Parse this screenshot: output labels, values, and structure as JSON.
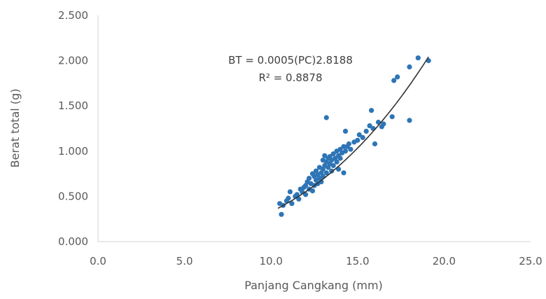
{
  "chart_data": {
    "type": "scatter",
    "xlabel": "Panjang Cangkang (mm)",
    "ylabel": "Berat total (g)",
    "xlim": [
      0,
      25
    ],
    "ylim": [
      0,
      2.5
    ],
    "x_ticks": [
      "0.0",
      "5.0",
      "10.0",
      "15.0",
      "20.0",
      "25.0"
    ],
    "y_ticks": [
      "0.000",
      "0.500",
      "1.000",
      "1.500",
      "2.000",
      "2.500"
    ],
    "grid": false,
    "legend": "none",
    "point_color": "#2E75B6",
    "trendline": {
      "type": "power",
      "coefficient": 0.0005,
      "exponent": 2.8188,
      "x_range": [
        10.4,
        19.1
      ],
      "color": "#333333",
      "equation_label": "BT = 0.0005(PC)2.8188",
      "r2_label": "R² = 0.8878"
    },
    "points": [
      [
        10.5,
        0.42
      ],
      [
        10.6,
        0.3
      ],
      [
        10.7,
        0.4
      ],
      [
        10.9,
        0.45
      ],
      [
        11.0,
        0.48
      ],
      [
        11.1,
        0.55
      ],
      [
        11.2,
        0.42
      ],
      [
        11.4,
        0.5
      ],
      [
        11.5,
        0.52
      ],
      [
        11.6,
        0.47
      ],
      [
        11.7,
        0.58
      ],
      [
        11.8,
        0.55
      ],
      [
        11.9,
        0.6
      ],
      [
        12.0,
        0.62
      ],
      [
        12.0,
        0.52
      ],
      [
        12.1,
        0.66
      ],
      [
        12.2,
        0.58
      ],
      [
        12.2,
        0.7
      ],
      [
        12.3,
        0.64
      ],
      [
        12.4,
        0.75
      ],
      [
        12.4,
        0.56
      ],
      [
        12.5,
        0.72
      ],
      [
        12.5,
        0.62
      ],
      [
        12.6,
        0.68
      ],
      [
        12.6,
        0.78
      ],
      [
        12.7,
        0.74
      ],
      [
        12.7,
        0.64
      ],
      [
        12.8,
        0.7
      ],
      [
        12.8,
        0.82
      ],
      [
        12.9,
        0.76
      ],
      [
        12.9,
        0.66
      ],
      [
        13.0,
        0.8
      ],
      [
        13.0,
        0.9
      ],
      [
        13.0,
        0.72
      ],
      [
        13.1,
        0.84
      ],
      [
        13.1,
        0.95
      ],
      [
        13.2,
        0.88
      ],
      [
        13.2,
        0.76
      ],
      [
        13.2,
        1.37
      ],
      [
        13.3,
        0.92
      ],
      [
        13.3,
        0.82
      ],
      [
        13.4,
        0.86
      ],
      [
        13.4,
        0.94
      ],
      [
        13.5,
        0.78
      ],
      [
        13.5,
        0.9
      ],
      [
        13.6,
        0.97
      ],
      [
        13.6,
        0.84
      ],
      [
        13.7,
        0.92
      ],
      [
        13.8,
        1.0
      ],
      [
        13.8,
        0.88
      ],
      [
        13.9,
        0.95
      ],
      [
        13.9,
        0.8
      ],
      [
        14.0,
        1.02
      ],
      [
        14.0,
        0.92
      ],
      [
        14.1,
        0.98
      ],
      [
        14.2,
        1.05
      ],
      [
        14.2,
        0.76
      ],
      [
        14.3,
        1.0
      ],
      [
        14.3,
        1.22
      ],
      [
        14.4,
        1.05
      ],
      [
        14.5,
        1.08
      ],
      [
        14.6,
        1.02
      ],
      [
        14.8,
        1.1
      ],
      [
        15.0,
        1.12
      ],
      [
        15.1,
        1.18
      ],
      [
        15.3,
        1.15
      ],
      [
        15.5,
        1.22
      ],
      [
        15.7,
        1.28
      ],
      [
        15.8,
        1.45
      ],
      [
        15.9,
        1.25
      ],
      [
        16.0,
        1.08
      ],
      [
        16.2,
        1.32
      ],
      [
        16.4,
        1.27
      ],
      [
        16.5,
        1.3
      ],
      [
        17.0,
        1.38
      ],
      [
        17.1,
        1.78
      ],
      [
        17.3,
        1.82
      ],
      [
        18.0,
        1.34
      ],
      [
        18.0,
        1.93
      ],
      [
        18.5,
        2.03
      ],
      [
        19.1,
        2.0
      ]
    ]
  }
}
